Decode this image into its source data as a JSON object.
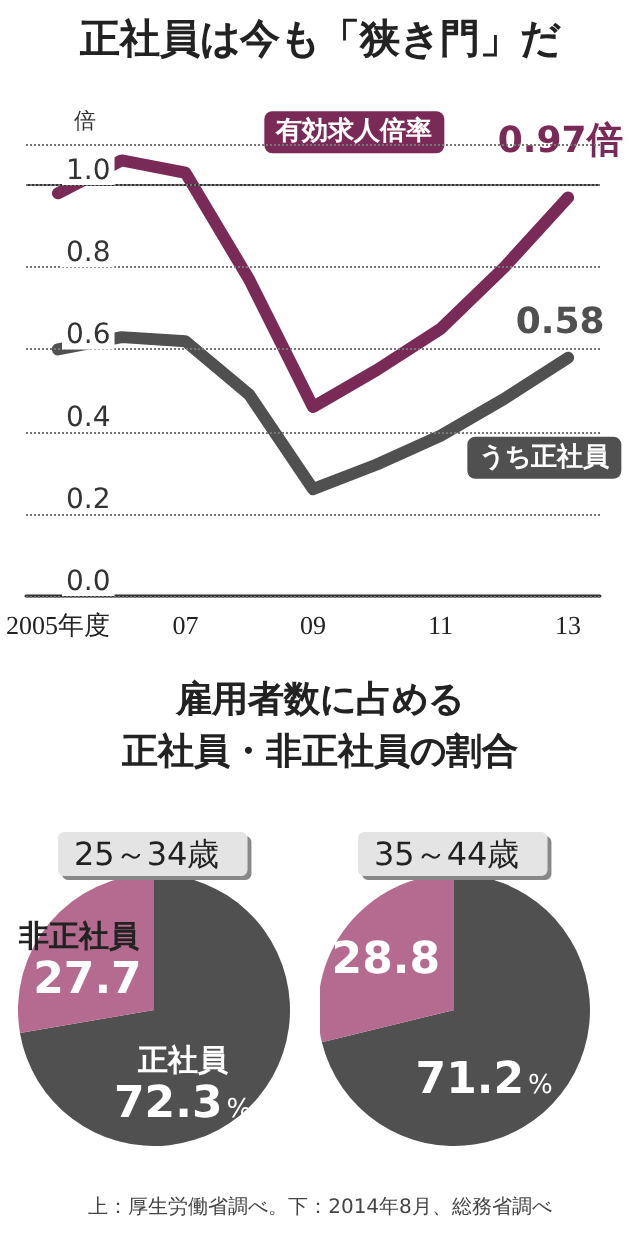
{
  "chart_data": [
    {
      "type": "line",
      "title": "正社員は今も「狭き門」だ",
      "ylabel": "倍",
      "categories": [
        "2005年度",
        null,
        "07",
        null,
        "09",
        null,
        "11",
        null,
        "13"
      ],
      "series": [
        {
          "name": "有効求人倍率",
          "color": "#7a2a57",
          "values": [
            0.98,
            1.06,
            1.03,
            0.77,
            0.46,
            0.55,
            0.65,
            0.8,
            0.97
          ],
          "value_labels": [
            null,
            null,
            null,
            null,
            null,
            null,
            null,
            null,
            "0.97倍"
          ]
        },
        {
          "name": "うち正社員",
          "color": "#505050",
          "values": [
            0.6,
            0.63,
            0.62,
            0.49,
            0.26,
            0.32,
            0.39,
            0.48,
            0.58
          ],
          "value_labels": [
            null,
            null,
            null,
            null,
            null,
            null,
            null,
            null,
            "0.58"
          ]
        }
      ],
      "ylim": [
        0,
        1.1
      ],
      "yticks": [
        {
          "value": 0,
          "label": "0.0"
        },
        {
          "value": 0.2,
          "label": "0.2"
        },
        {
          "value": 0.4,
          "label": "0.4"
        },
        {
          "value": 0.6,
          "label": "0.6"
        },
        {
          "value": 0.8,
          "label": "0.8"
        },
        {
          "value": 1,
          "label": "1.0"
        }
      ],
      "grid": "y",
      "legend": false,
      "marker": "none",
      "line_style": "solid",
      "ref_lines": [
        {
          "axis": "y",
          "value": 1,
          "color": "#333333",
          "line_style": "solid"
        }
      ]
    },
    {
      "type": "pie",
      "title": "雇用者数に占める",
      "subtitle": "正社員・非正社員の割合",
      "categories": [
        "正社員",
        "非正社員"
      ],
      "values": [
        72.3,
        27.7
      ],
      "colors": [
        "#505050",
        "#b56a90"
      ],
      "value_labels": [
        "72.3%",
        "27.7"
      ],
      "annotations": [
        "25～34歳",
        "上：厚生労働省調べ。下：2014年8月、総務省調べ"
      ]
    },
    {
      "type": "pie",
      "annotations": [
        "35～44歳"
      ],
      "categories": [
        null,
        null
      ],
      "values": [
        71.2,
        28.8
      ],
      "colors": [
        "#505050",
        "#b56a90"
      ],
      "value_labels": [
        "71.2%",
        "28.8"
      ]
    }
  ]
}
